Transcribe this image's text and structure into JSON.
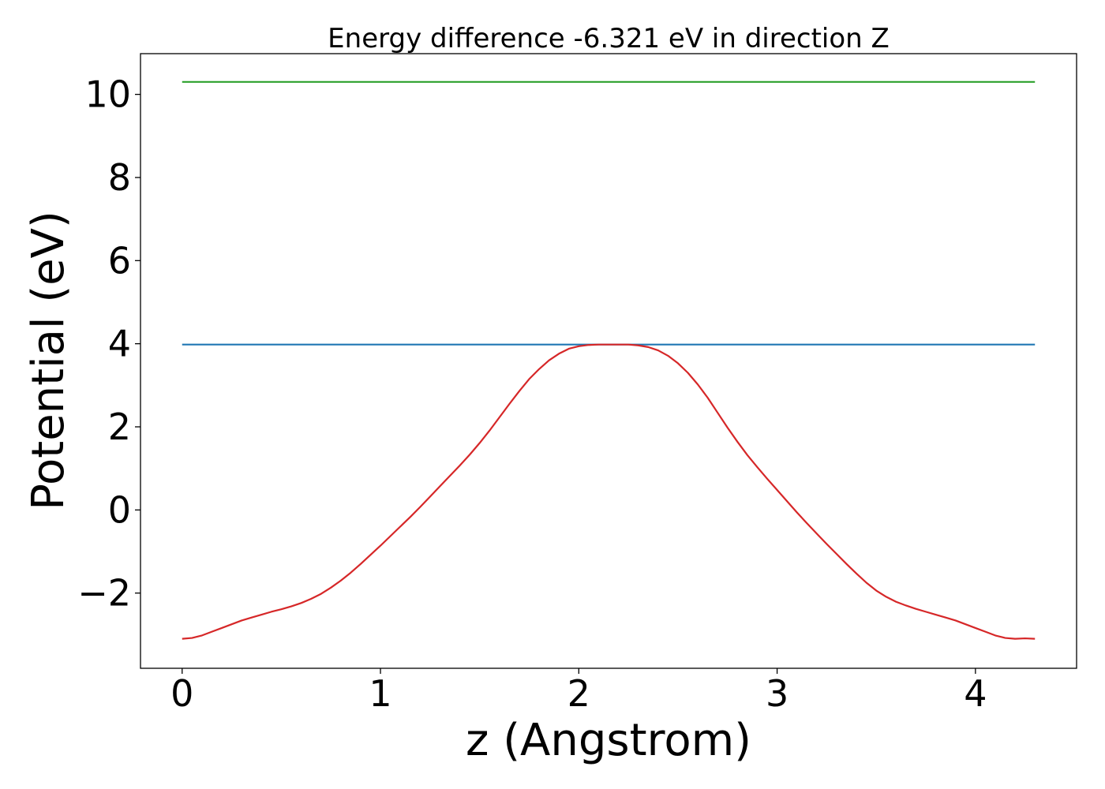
{
  "chart_data": {
    "type": "line",
    "title": "Energy difference -6.321 eV in direction Z",
    "xlabel": "z (Angstrom)",
    "ylabel": "Potential (eV)",
    "xlim": [
      -0.21,
      4.51
    ],
    "ylim": [
      -3.81,
      10.98
    ],
    "xticks": [
      0,
      1,
      2,
      3,
      4
    ],
    "xtick_labels": [
      "0",
      "1",
      "2",
      "3",
      "4"
    ],
    "yticks": [
      -2,
      0,
      2,
      4,
      6,
      8,
      10
    ],
    "ytick_labels": [
      "−2",
      "0",
      "2",
      "4",
      "6",
      "8",
      "10"
    ],
    "grid": false,
    "legend": "none",
    "series": [
      {
        "color": "#2ca02c",
        "style": "horizontal",
        "x": [
          0,
          4.3
        ],
        "values": [
          10.3,
          10.3
        ]
      },
      {
        "color": "#1f77b4",
        "style": "horizontal",
        "x": [
          0,
          4.3
        ],
        "values": [
          3.98,
          3.98
        ]
      },
      {
        "color": "#d62728",
        "style": "curve",
        "x": [
          0.0,
          0.05,
          0.1,
          0.15,
          0.2,
          0.25,
          0.3,
          0.35,
          0.4,
          0.45,
          0.5,
          0.55,
          0.6,
          0.65,
          0.7,
          0.75,
          0.8,
          0.85,
          0.9,
          0.95,
          1.0,
          1.05,
          1.1,
          1.15,
          1.2,
          1.25,
          1.3,
          1.35,
          1.4,
          1.45,
          1.5,
          1.55,
          1.6,
          1.65,
          1.7,
          1.75,
          1.8,
          1.85,
          1.9,
          1.95,
          2.0,
          2.05,
          2.1,
          2.15,
          2.2,
          2.25,
          2.3,
          2.35,
          2.4,
          2.45,
          2.5,
          2.55,
          2.6,
          2.65,
          2.7,
          2.75,
          2.8,
          2.85,
          2.9,
          2.95,
          3.0,
          3.05,
          3.1,
          3.15,
          3.2,
          3.25,
          3.3,
          3.35,
          3.4,
          3.45,
          3.5,
          3.55,
          3.6,
          3.65,
          3.7,
          3.75,
          3.8,
          3.85,
          3.9,
          3.95,
          4.0,
          4.05,
          4.1,
          4.15,
          4.2,
          4.25,
          4.3
        ],
        "values": [
          -3.1,
          -3.08,
          -3.02,
          -2.93,
          -2.84,
          -2.75,
          -2.66,
          -2.59,
          -2.52,
          -2.45,
          -2.39,
          -2.32,
          -2.24,
          -2.14,
          -2.02,
          -1.87,
          -1.7,
          -1.51,
          -1.3,
          -1.08,
          -0.86,
          -0.63,
          -0.4,
          -0.17,
          0.07,
          0.32,
          0.57,
          0.82,
          1.07,
          1.33,
          1.61,
          1.91,
          2.23,
          2.55,
          2.86,
          3.15,
          3.39,
          3.6,
          3.76,
          3.88,
          3.94,
          3.97,
          3.98,
          3.98,
          3.98,
          3.98,
          3.96,
          3.92,
          3.84,
          3.71,
          3.53,
          3.3,
          3.02,
          2.7,
          2.34,
          1.98,
          1.64,
          1.32,
          1.03,
          0.75,
          0.48,
          0.21,
          -0.06,
          -0.32,
          -0.57,
          -0.82,
          -1.06,
          -1.3,
          -1.53,
          -1.75,
          -1.94,
          -2.09,
          -2.21,
          -2.3,
          -2.38,
          -2.45,
          -2.52,
          -2.59,
          -2.66,
          -2.75,
          -2.84,
          -2.93,
          -3.02,
          -3.08,
          -3.1,
          -3.09,
          -3.1
        ]
      }
    ]
  }
}
